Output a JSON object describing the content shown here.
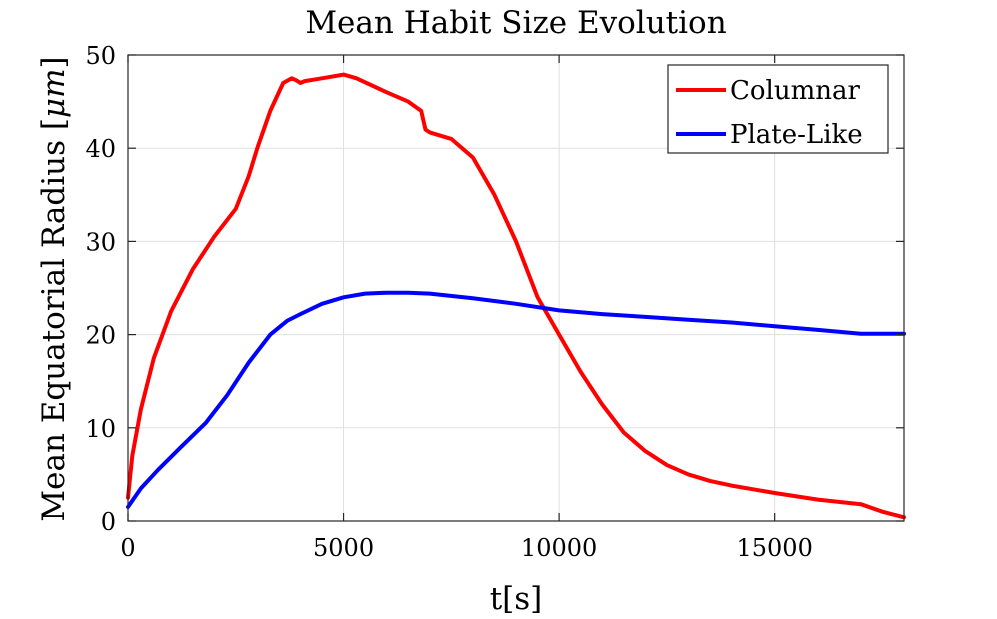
{
  "chart_data": {
    "type": "line",
    "title": "Mean Habit Size Evolution",
    "xlabel": "t[s]",
    "ylabel": "Mean Equatorial Radius [",
    "ylabel_unit": "μm",
    "ylabel_close": "]",
    "xlim": [
      0,
      18000
    ],
    "ylim": [
      0,
      50
    ],
    "xticks": [
      0,
      5000,
      10000,
      15000
    ],
    "yticks": [
      0,
      10,
      20,
      30,
      40,
      50
    ],
    "grid": true,
    "legend_position": "top-right",
    "series": [
      {
        "name": "Columnar",
        "color": "#ff0000",
        "x": [
          0,
          100,
          300,
          600,
          1000,
          1500,
          2000,
          2500,
          2800,
          3000,
          3300,
          3600,
          3800,
          3900,
          4000,
          4100,
          4500,
          5000,
          5300,
          6000,
          6500,
          6800,
          6900,
          7000,
          7500,
          8000,
          8500,
          9000,
          9500,
          10000,
          10500,
          11000,
          11500,
          12000,
          12500,
          13000,
          13500,
          14000,
          15000,
          16000,
          17000,
          17500,
          18000
        ],
        "y": [
          2.5,
          7,
          12,
          17.5,
          22.5,
          27,
          30.5,
          33.5,
          37,
          40,
          44,
          47,
          47.5,
          47.3,
          47,
          47.2,
          47.5,
          47.9,
          47.5,
          46,
          45,
          44,
          42,
          41.7,
          41,
          39,
          35,
          30,
          24,
          20,
          16,
          12.5,
          9.5,
          7.5,
          6,
          5,
          4.3,
          3.8,
          3,
          2.3,
          1.8,
          1,
          0.4
        ]
      },
      {
        "name": "Plate-Like",
        "color": "#0000ff",
        "x": [
          0,
          300,
          700,
          1200,
          1800,
          2300,
          2800,
          3300,
          3700,
          4000,
          4500,
          5000,
          5500,
          6000,
          6500,
          7000,
          8000,
          9000,
          10000,
          11000,
          12000,
          13000,
          14000,
          15000,
          16000,
          17000,
          18000
        ],
        "y": [
          1.5,
          3.5,
          5.5,
          7.8,
          10.5,
          13.5,
          17,
          20,
          21.5,
          22.2,
          23.3,
          24,
          24.4,
          24.5,
          24.5,
          24.4,
          23.9,
          23.3,
          22.6,
          22.2,
          21.9,
          21.6,
          21.3,
          20.9,
          20.5,
          20.1,
          20.1
        ]
      }
    ]
  }
}
